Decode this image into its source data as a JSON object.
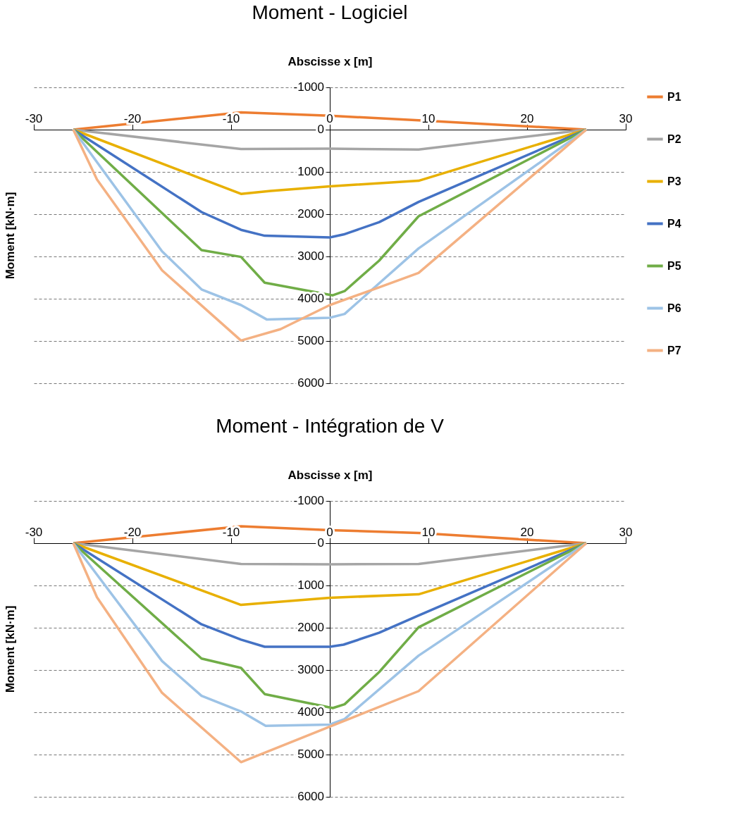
{
  "chart_data": [
    {
      "type": "line",
      "title": "Moment - Logiciel",
      "xlabel": "Abscisse x [m]",
      "ylabel": "Moment [kN·m]",
      "xlim": [
        -30,
        30
      ],
      "xticks": [
        -30,
        -20,
        -10,
        0,
        10,
        20,
        30
      ],
      "ylim": [
        6000,
        -1000
      ],
      "yticks": [
        -1000,
        0,
        1000,
        2000,
        3000,
        4000,
        5000,
        6000
      ],
      "grid": "y",
      "legend": "right",
      "line_style": "solid",
      "series": [
        {
          "name": "P1",
          "color": "#ed7d31",
          "x": [
            -26,
            -9,
            0,
            9,
            26
          ],
          "values": [
            0,
            -410,
            -330,
            -220,
            0
          ]
        },
        {
          "name": "P2",
          "color": "#a5a5a5",
          "x": [
            -26,
            -9,
            0,
            9,
            26
          ],
          "values": [
            0,
            460,
            450,
            470,
            0
          ]
        },
        {
          "name": "P3",
          "color": "#e8b000",
          "x": [
            -26,
            -9,
            -6,
            0,
            9,
            26
          ],
          "values": [
            0,
            1520,
            1450,
            1340,
            1210,
            0
          ]
        },
        {
          "name": "P4",
          "color": "#4472c4",
          "x": [
            -26,
            -13,
            -9,
            -6.6,
            0,
            1.4,
            5,
            9,
            26
          ],
          "values": [
            0,
            1950,
            2370,
            2510,
            2550,
            2480,
            2190,
            1710,
            0
          ]
        },
        {
          "name": "P5",
          "color": "#70ad47",
          "x": [
            -26,
            -13,
            -9,
            -6.6,
            0.3,
            1.5,
            5,
            9,
            26
          ],
          "values": [
            0,
            2850,
            3010,
            3620,
            3920,
            3820,
            3100,
            2050,
            0
          ]
        },
        {
          "name": "P6",
          "color": "#9dc3e6",
          "x": [
            -26,
            -17,
            -13,
            -9,
            -6.4,
            0,
            1.5,
            9,
            26
          ],
          "values": [
            0,
            2880,
            3780,
            4150,
            4490,
            4450,
            4360,
            2810,
            0
          ]
        },
        {
          "name": "P7",
          "color": "#f4b183",
          "x": [
            -26,
            -23.6,
            -17,
            -9,
            -5,
            0,
            5,
            9,
            26
          ],
          "values": [
            0,
            1180,
            3330,
            4990,
            4720,
            4150,
            3730,
            3390,
            0
          ]
        }
      ]
    },
    {
      "type": "line",
      "title": "Moment - Intégration de V",
      "xlabel": "Abscisse x [m]",
      "ylabel": "Moment [kN·m]",
      "xlim": [
        -30,
        30
      ],
      "xticks": [
        -30,
        -20,
        -10,
        0,
        10,
        20,
        30
      ],
      "ylim": [
        6000,
        -1000
      ],
      "yticks": [
        -1000,
        0,
        1000,
        2000,
        3000,
        4000,
        5000,
        6000
      ],
      "grid": "y",
      "legend": "right",
      "line_style": "solid",
      "series": [
        {
          "name": "P1",
          "color": "#ed7d31",
          "x": [
            -26,
            -9,
            0,
            9,
            26
          ],
          "values": [
            0,
            -400,
            -310,
            -240,
            0
          ]
        },
        {
          "name": "P2",
          "color": "#a5a5a5",
          "x": [
            -26,
            -9,
            0,
            9,
            26
          ],
          "values": [
            0,
            490,
            500,
            490,
            0
          ]
        },
        {
          "name": "P3",
          "color": "#e8b000",
          "x": [
            -26,
            -9,
            0,
            9,
            26
          ],
          "values": [
            0,
            1460,
            1290,
            1210,
            0
          ]
        },
        {
          "name": "P4",
          "color": "#4472c4",
          "x": [
            -26,
            -13,
            -9,
            -6.6,
            0,
            1.4,
            5,
            9,
            26
          ],
          "values": [
            0,
            1920,
            2280,
            2450,
            2450,
            2400,
            2120,
            1710,
            0
          ]
        },
        {
          "name": "P5",
          "color": "#70ad47",
          "x": [
            -26,
            -13,
            -9,
            -6.6,
            0.3,
            1.5,
            5,
            9,
            26
          ],
          "values": [
            0,
            2730,
            2950,
            3570,
            3900,
            3810,
            3050,
            1990,
            0
          ]
        },
        {
          "name": "P6",
          "color": "#9dc3e6",
          "x": [
            -26,
            -17,
            -13,
            -9,
            -6.5,
            0,
            1.5,
            9,
            26
          ],
          "values": [
            0,
            2790,
            3610,
            3980,
            4320,
            4290,
            4160,
            2660,
            0
          ]
        },
        {
          "name": "P7",
          "color": "#f4b183",
          "x": [
            -26,
            -23.6,
            -17,
            -9,
            0,
            9,
            26
          ],
          "values": [
            0,
            1280,
            3540,
            5180,
            4340,
            3500,
            0
          ]
        }
      ]
    }
  ]
}
